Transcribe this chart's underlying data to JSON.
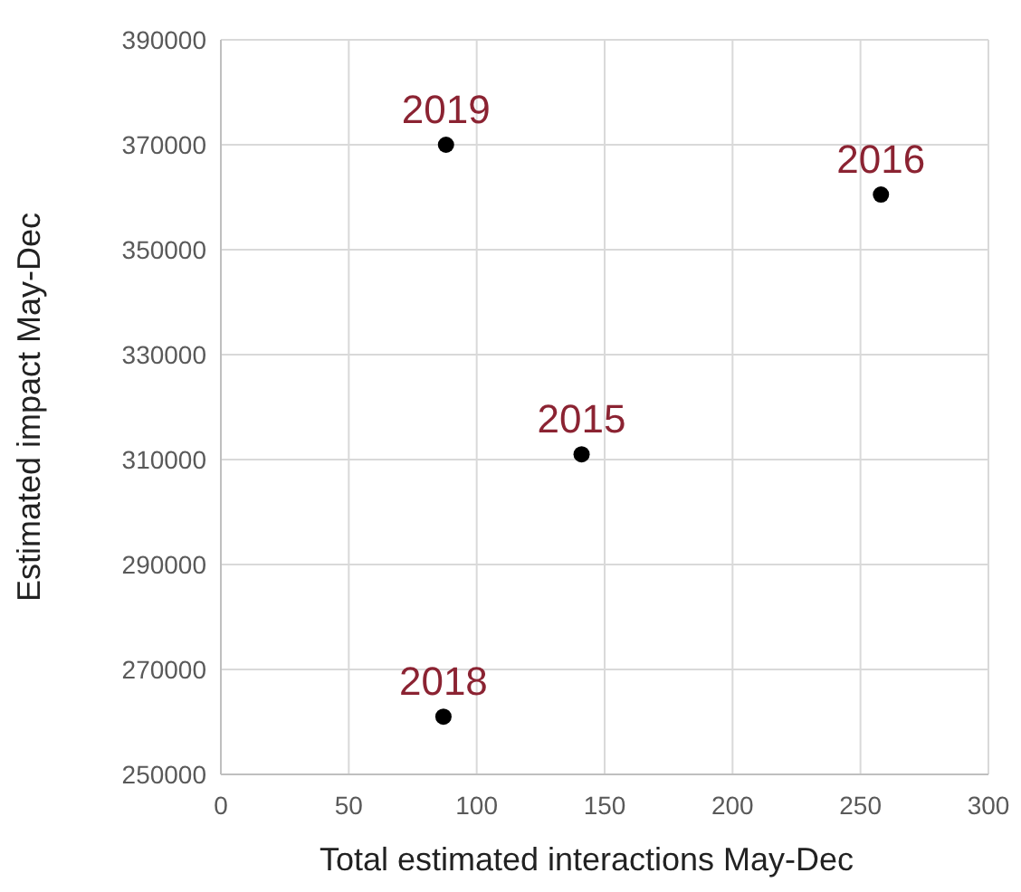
{
  "chart_data": {
    "type": "scatter",
    "xlabel": "Total estimated interactions May-Dec",
    "ylabel": "Estimated impact May-Dec",
    "x": [
      88,
      258,
      141,
      87
    ],
    "series": [
      {
        "color": "#000000",
        "values": [
          370000,
          360500,
          311000,
          261000
        ]
      }
    ],
    "xlim": [
      0,
      300
    ],
    "xticks": [
      0,
      50,
      100,
      150,
      200,
      250,
      300
    ],
    "ylim": [
      250000,
      390000
    ],
    "yticks": [
      250000,
      270000,
      290000,
      310000,
      330000,
      350000,
      370000,
      390000
    ],
    "grid": true,
    "marker": "circle",
    "annotations": [
      {
        "text": "2019",
        "x": 88,
        "y": 370000
      },
      {
        "text": "2016",
        "x": 258,
        "y": 360500
      },
      {
        "text": "2015",
        "x": 141,
        "y": 311000
      },
      {
        "text": "2018",
        "x": 87,
        "y": 261000
      }
    ]
  }
}
